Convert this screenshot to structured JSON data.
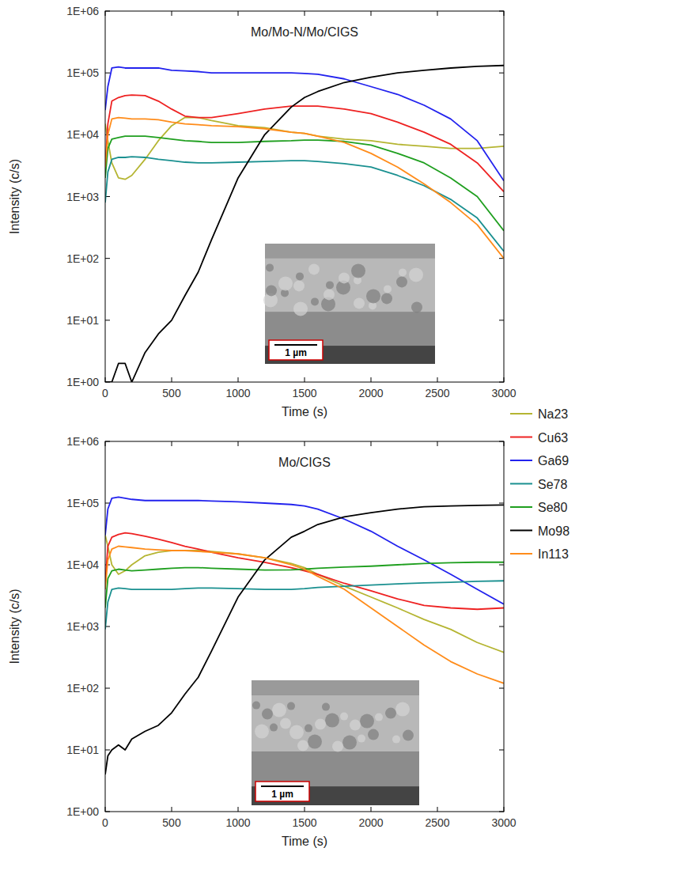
{
  "chart_data": [
    {
      "type": "line",
      "title": "Mo/Mo-N/Mo/CIGS",
      "x_label": "Time (s)",
      "y_label": "Intensity (c/s)",
      "log": "y",
      "legend": "right",
      "annotations": [
        "1 µm"
      ],
      "x": [
        0,
        20,
        50,
        100,
        150,
        200,
        300,
        400,
        500,
        600,
        700,
        800,
        1000,
        1200,
        1400,
        1500,
        1600,
        1800,
        2000,
        2200,
        2400,
        2600,
        2800,
        3000
      ],
      "xlim": [
        0,
        3000
      ],
      "xticks": [
        0,
        500,
        1000,
        1500,
        2000,
        2500,
        3000
      ],
      "ylim": [
        1,
        1000000
      ],
      "yticks": [
        {
          "value": 1,
          "label": "1E+00"
        },
        {
          "value": 10,
          "label": "1E+01"
        },
        {
          "value": 100,
          "label": "1E+02"
        },
        {
          "value": 1000,
          "label": "1E+03"
        },
        {
          "value": 10000,
          "label": "1E+04"
        },
        {
          "value": 100000,
          "label": "1E+05"
        },
        {
          "value": 1000000,
          "label": "1E+06"
        }
      ],
      "series": [
        {
          "name": "Na23",
          "color": "#b5b532",
          "values": [
            15000,
            8000,
            3500,
            2000,
            1900,
            2200,
            4000,
            8000,
            14000,
            19000,
            19000,
            17000,
            14000,
            13000,
            11000,
            10500,
            9500,
            8500,
            8000,
            7000,
            6500,
            6000,
            6000,
            6500
          ]
        },
        {
          "name": "Cu63",
          "color": "#ee2222",
          "values": [
            3000,
            15000,
            35000,
            40000,
            43000,
            44000,
            43000,
            35000,
            26000,
            20000,
            19000,
            19000,
            22000,
            26000,
            29000,
            29000,
            29000,
            26000,
            22000,
            16000,
            11000,
            7000,
            3500,
            1200
          ]
        },
        {
          "name": "Ga69",
          "color": "#2222ee",
          "values": [
            25000,
            60000,
            120000,
            125000,
            120000,
            120000,
            120000,
            120000,
            110000,
            108000,
            105000,
            100000,
            100000,
            100000,
            100000,
            98000,
            95000,
            80000,
            60000,
            45000,
            30000,
            18000,
            8000,
            1800
          ]
        },
        {
          "name": "Se78",
          "color": "#1a9090",
          "values": [
            800,
            2500,
            4000,
            4300,
            4300,
            4400,
            4300,
            4000,
            3800,
            3600,
            3500,
            3500,
            3600,
            3700,
            3800,
            3800,
            3700,
            3400,
            3000,
            2200,
            1500,
            900,
            450,
            130
          ]
        },
        {
          "name": "Se80",
          "color": "#1f9f1f",
          "values": [
            2000,
            6000,
            8500,
            9000,
            9500,
            9500,
            9500,
            9000,
            8500,
            8000,
            7800,
            7500,
            7500,
            7800,
            8000,
            8200,
            8200,
            7800,
            6800,
            5000,
            3500,
            2000,
            1000,
            280
          ]
        },
        {
          "name": "Mo98",
          "color": "#000000",
          "values": [
            1,
            1,
            1,
            2,
            2,
            1,
            3,
            6,
            10,
            25,
            60,
            200,
            2000,
            10000,
            28000,
            40000,
            50000,
            70000,
            85000,
            100000,
            110000,
            120000,
            128000,
            132000
          ]
        },
        {
          "name": "In113",
          "color": "#ff8c1a",
          "values": [
            3000,
            10000,
            18000,
            19000,
            18500,
            18000,
            18000,
            17500,
            16000,
            15000,
            14500,
            14000,
            13500,
            12500,
            11000,
            10500,
            9500,
            7500,
            5000,
            3000,
            1600,
            800,
            350,
            100
          ]
        }
      ]
    },
    {
      "type": "line",
      "title": "Mo/CIGS",
      "x_label": "Time (s)",
      "y_label": "Intensity (c/s)",
      "log": "y",
      "annotations": [
        "1 µm"
      ],
      "x": [
        0,
        20,
        50,
        100,
        150,
        200,
        300,
        400,
        500,
        600,
        700,
        800,
        1000,
        1200,
        1400,
        1500,
        1600,
        1800,
        2000,
        2200,
        2400,
        2600,
        2800,
        3000
      ],
      "xlim": [
        0,
        3000
      ],
      "xticks": [
        0,
        500,
        1000,
        1500,
        2000,
        2500,
        3000
      ],
      "ylim": [
        1,
        1000000
      ],
      "yticks": [
        {
          "value": 1,
          "label": "1E+00"
        },
        {
          "value": 10,
          "label": "1E+01"
        },
        {
          "value": 100,
          "label": "1E+02"
        },
        {
          "value": 1000,
          "label": "1E+03"
        },
        {
          "value": 10000,
          "label": "1E+04"
        },
        {
          "value": 100000,
          "label": "1E+05"
        },
        {
          "value": 1000000,
          "label": "1E+06"
        }
      ],
      "series": [
        {
          "name": "Na23",
          "color": "#b5b532",
          "values": [
            30000,
            20000,
            10000,
            7000,
            8000,
            10000,
            14000,
            16000,
            17000,
            17000,
            17000,
            16500,
            15000,
            13000,
            10500,
            9000,
            7000,
            4500,
            3000,
            2000,
            1300,
            900,
            550,
            380
          ]
        },
        {
          "name": "Cu63",
          "color": "#ee2222",
          "values": [
            5000,
            20000,
            28000,
            31000,
            33000,
            32000,
            29000,
            26000,
            23000,
            20000,
            18000,
            16000,
            13000,
            11000,
            9000,
            8000,
            7000,
            5000,
            3800,
            2800,
            2200,
            2000,
            1900,
            2000
          ]
        },
        {
          "name": "Ga69",
          "color": "#2222ee",
          "values": [
            30000,
            80000,
            120000,
            125000,
            120000,
            115000,
            110000,
            110000,
            110000,
            110000,
            110000,
            108000,
            105000,
            100000,
            95000,
            90000,
            80000,
            55000,
            35000,
            20000,
            12000,
            7000,
            4000,
            2300
          ]
        },
        {
          "name": "Se78",
          "color": "#1a9090",
          "values": [
            900,
            2500,
            4000,
            4200,
            4100,
            4000,
            4000,
            4000,
            4000,
            4100,
            4200,
            4200,
            4100,
            4000,
            4000,
            4100,
            4300,
            4500,
            4700,
            4900,
            5100,
            5200,
            5400,
            5500
          ]
        },
        {
          "name": "Se80",
          "color": "#1f9f1f",
          "values": [
            2000,
            6000,
            8000,
            8500,
            8200,
            8000,
            8200,
            8500,
            8800,
            9000,
            9000,
            8800,
            8500,
            8200,
            8300,
            8500,
            8800,
            9200,
            9500,
            10000,
            10500,
            10800,
            11000,
            11000
          ]
        },
        {
          "name": "Mo98",
          "color": "#000000",
          "values": [
            4,
            8,
            10,
            12,
            10,
            15,
            20,
            25,
            40,
            80,
            150,
            400,
            3000,
            12000,
            28000,
            35000,
            45000,
            60000,
            70000,
            80000,
            87000,
            90000,
            92000,
            93000
          ]
        },
        {
          "name": "In113",
          "color": "#ff8c1a",
          "values": [
            4000,
            12000,
            18000,
            20000,
            19500,
            19000,
            18000,
            17500,
            17000,
            17000,
            16500,
            16000,
            15000,
            13000,
            10000,
            8500,
            6500,
            4000,
            2000,
            1000,
            500,
            270,
            170,
            120
          ]
        }
      ]
    }
  ]
}
